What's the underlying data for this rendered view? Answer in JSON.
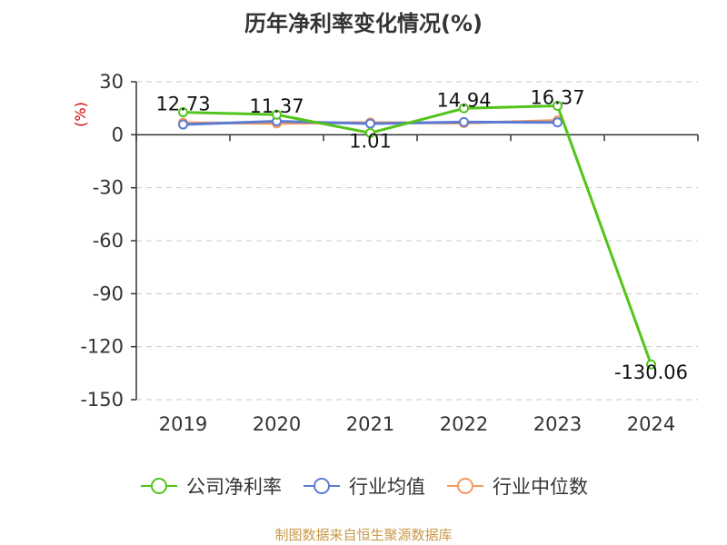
{
  "chart_data": {
    "type": "line",
    "title": "历年净利率变化情况(%)",
    "ylabel": "(%)",
    "categories": [
      "2019",
      "2020",
      "2021",
      "2022",
      "2023",
      "2024"
    ],
    "ylim": [
      -150,
      30
    ],
    "yticks": [
      30,
      0,
      -30,
      -60,
      -90,
      -120,
      -150
    ],
    "grid": true,
    "legend_position": "bottom",
    "series": [
      {
        "name": "公司净利率",
        "color": "#52c41a",
        "values": [
          12.73,
          11.37,
          1.01,
          14.94,
          16.37,
          -130.06
        ],
        "labels": [
          "12.73",
          "11.37",
          "1.01",
          "14.94",
          "16.37",
          "-130.06"
        ]
      },
      {
        "name": "行业均值",
        "color": "#5b7bd5",
        "values": [
          5.8,
          7.6,
          6.3,
          7.2,
          7.0,
          null
        ]
      },
      {
        "name": "行业中位数",
        "color": "#f59a5a",
        "values": [
          6.8,
          6.4,
          6.9,
          6.6,
          8.1,
          null
        ]
      }
    ]
  },
  "footer": "制图数据来自恒生聚源数据库"
}
